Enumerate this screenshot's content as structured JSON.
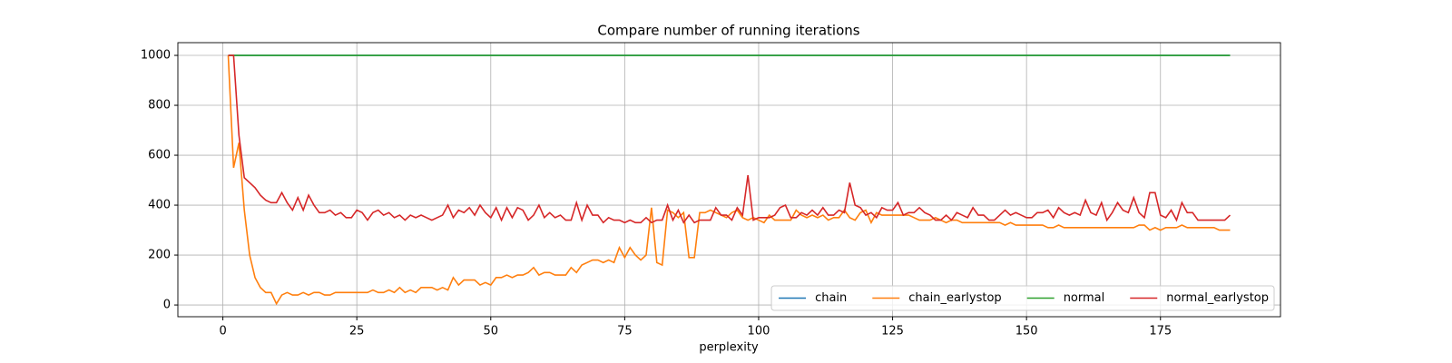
{
  "chart_data": {
    "type": "line",
    "title": "Compare number of running iterations",
    "x_label": "perplexity",
    "xlim": [
      -8.4,
      197.4
    ],
    "ylim": [
      -47,
      1051
    ],
    "xticks": [
      0,
      25,
      50,
      75,
      100,
      125,
      150,
      175
    ],
    "yticks": [
      0,
      200,
      400,
      600,
      800,
      1000
    ],
    "grid": true,
    "legend_loc": "lower right",
    "x": [
      1,
      2,
      3,
      4,
      5,
      6,
      7,
      8,
      9,
      10,
      11,
      12,
      13,
      14,
      15,
      16,
      17,
      18,
      19,
      20,
      21,
      22,
      23,
      24,
      25,
      26,
      27,
      28,
      29,
      30,
      31,
      32,
      33,
      34,
      35,
      36,
      37,
      38,
      39,
      40,
      41,
      42,
      43,
      44,
      45,
      46,
      47,
      48,
      49,
      50,
      51,
      52,
      53,
      54,
      55,
      56,
      57,
      58,
      59,
      60,
      61,
      62,
      63,
      64,
      65,
      66,
      67,
      68,
      69,
      70,
      71,
      72,
      73,
      74,
      75,
      76,
      77,
      78,
      79,
      80,
      81,
      82,
      83,
      84,
      85,
      86,
      87,
      88,
      89,
      90,
      91,
      92,
      93,
      94,
      95,
      96,
      97,
      98,
      99,
      100,
      101,
      102,
      103,
      104,
      105,
      106,
      107,
      108,
      109,
      110,
      111,
      112,
      113,
      114,
      115,
      116,
      117,
      118,
      119,
      120,
      121,
      122,
      123,
      124,
      125,
      126,
      127,
      128,
      129,
      130,
      131,
      132,
      133,
      134,
      135,
      136,
      137,
      138,
      139,
      140,
      141,
      142,
      143,
      144,
      145,
      146,
      147,
      148,
      149,
      150,
      151,
      152,
      153,
      154,
      155,
      156,
      157,
      158,
      159,
      160,
      161,
      162,
      163,
      164,
      165,
      166,
      167,
      168,
      169,
      170,
      171,
      172,
      173,
      174,
      175,
      176,
      177,
      178,
      179,
      180,
      181,
      182,
      183,
      184,
      185,
      186,
      187,
      188
    ],
    "series": [
      {
        "name": "chain",
        "color": "#1f77b4",
        "values": [
          1000,
          1000,
          1000,
          1000,
          1000,
          1000,
          1000,
          1000,
          1000,
          1000,
          1000,
          1000,
          1000,
          1000,
          1000,
          1000,
          1000,
          1000,
          1000,
          1000,
          1000,
          1000,
          1000,
          1000,
          1000,
          1000,
          1000,
          1000,
          1000,
          1000,
          1000,
          1000,
          1000,
          1000,
          1000,
          1000,
          1000,
          1000,
          1000,
          1000,
          1000,
          1000,
          1000,
          1000,
          1000,
          1000,
          1000,
          1000,
          1000,
          1000,
          1000,
          1000,
          1000,
          1000,
          1000,
          1000,
          1000,
          1000,
          1000,
          1000,
          1000,
          1000,
          1000,
          1000,
          1000,
          1000,
          1000,
          1000,
          1000,
          1000,
          1000,
          1000,
          1000,
          1000,
          1000,
          1000,
          1000,
          1000,
          1000,
          1000,
          1000,
          1000,
          1000,
          1000,
          1000,
          1000,
          1000,
          1000,
          1000,
          1000,
          1000,
          1000,
          1000,
          1000,
          1000,
          1000,
          1000,
          1000,
          1000,
          1000,
          1000,
          1000,
          1000,
          1000,
          1000,
          1000,
          1000,
          1000,
          1000,
          1000,
          1000,
          1000,
          1000,
          1000,
          1000,
          1000,
          1000,
          1000,
          1000,
          1000,
          1000,
          1000,
          1000,
          1000,
          1000,
          1000,
          1000,
          1000,
          1000,
          1000,
          1000,
          1000,
          1000,
          1000,
          1000,
          1000,
          1000,
          1000,
          1000,
          1000,
          1000,
          1000,
          1000,
          1000,
          1000,
          1000,
          1000,
          1000,
          1000,
          1000,
          1000,
          1000,
          1000,
          1000,
          1000,
          1000,
          1000,
          1000,
          1000,
          1000,
          1000,
          1000,
          1000,
          1000,
          1000,
          1000,
          1000,
          1000,
          1000,
          1000,
          1000,
          1000,
          1000,
          1000,
          1000,
          1000,
          1000,
          1000,
          1000,
          1000,
          1000,
          1000,
          1000,
          1000,
          1000,
          1000,
          1000,
          1000
        ]
      },
      {
        "name": "chain_earlystop",
        "color": "#ff7f0e",
        "values": [
          1000,
          550,
          650,
          380,
          200,
          110,
          70,
          50,
          50,
          5,
          40,
          50,
          40,
          40,
          50,
          40,
          50,
          50,
          40,
          40,
          50,
          50,
          50,
          50,
          50,
          50,
          50,
          60,
          50,
          50,
          60,
          50,
          70,
          50,
          60,
          50,
          70,
          70,
          70,
          60,
          70,
          60,
          110,
          80,
          100,
          100,
          100,
          80,
          90,
          80,
          110,
          110,
          120,
          110,
          120,
          120,
          130,
          150,
          120,
          130,
          130,
          120,
          120,
          120,
          150,
          130,
          160,
          170,
          180,
          180,
          170,
          180,
          170,
          230,
          190,
          230,
          200,
          180,
          200,
          390,
          170,
          160,
          380,
          370,
          350,
          370,
          190,
          190,
          370,
          370,
          380,
          370,
          360,
          350,
          370,
          380,
          350,
          340,
          350,
          340,
          330,
          360,
          340,
          340,
          340,
          340,
          380,
          360,
          350,
          360,
          350,
          360,
          340,
          350,
          350,
          380,
          350,
          340,
          370,
          380,
          330,
          370,
          360,
          360,
          360,
          360,
          360,
          360,
          350,
          340,
          340,
          340,
          350,
          340,
          330,
          340,
          340,
          330,
          330,
          330,
          330,
          330,
          330,
          330,
          330,
          320,
          330,
          320,
          320,
          320,
          320,
          320,
          320,
          310,
          310,
          320,
          310,
          310,
          310,
          310,
          310,
          310,
          310,
          310,
          310,
          310,
          310,
          310,
          310,
          310,
          320,
          320,
          300,
          310,
          300,
          310,
          310,
          310,
          320,
          310,
          310,
          310,
          310,
          310,
          310,
          300,
          300,
          300
        ]
      },
      {
        "name": "normal",
        "color": "#2ca02c",
        "values": [
          1000,
          1000,
          1000,
          1000,
          1000,
          1000,
          1000,
          1000,
          1000,
          1000,
          1000,
          1000,
          1000,
          1000,
          1000,
          1000,
          1000,
          1000,
          1000,
          1000,
          1000,
          1000,
          1000,
          1000,
          1000,
          1000,
          1000,
          1000,
          1000,
          1000,
          1000,
          1000,
          1000,
          1000,
          1000,
          1000,
          1000,
          1000,
          1000,
          1000,
          1000,
          1000,
          1000,
          1000,
          1000,
          1000,
          1000,
          1000,
          1000,
          1000,
          1000,
          1000,
          1000,
          1000,
          1000,
          1000,
          1000,
          1000,
          1000,
          1000,
          1000,
          1000,
          1000,
          1000,
          1000,
          1000,
          1000,
          1000,
          1000,
          1000,
          1000,
          1000,
          1000,
          1000,
          1000,
          1000,
          1000,
          1000,
          1000,
          1000,
          1000,
          1000,
          1000,
          1000,
          1000,
          1000,
          1000,
          1000,
          1000,
          1000,
          1000,
          1000,
          1000,
          1000,
          1000,
          1000,
          1000,
          1000,
          1000,
          1000,
          1000,
          1000,
          1000,
          1000,
          1000,
          1000,
          1000,
          1000,
          1000,
          1000,
          1000,
          1000,
          1000,
          1000,
          1000,
          1000,
          1000,
          1000,
          1000,
          1000,
          1000,
          1000,
          1000,
          1000,
          1000,
          1000,
          1000,
          1000,
          1000,
          1000,
          1000,
          1000,
          1000,
          1000,
          1000,
          1000,
          1000,
          1000,
          1000,
          1000,
          1000,
          1000,
          1000,
          1000,
          1000,
          1000,
          1000,
          1000,
          1000,
          1000,
          1000,
          1000,
          1000,
          1000,
          1000,
          1000,
          1000,
          1000,
          1000,
          1000,
          1000,
          1000,
          1000,
          1000,
          1000,
          1000,
          1000,
          1000,
          1000,
          1000,
          1000,
          1000,
          1000,
          1000,
          1000,
          1000,
          1000,
          1000,
          1000,
          1000,
          1000,
          1000,
          1000,
          1000,
          1000,
          1000,
          1000,
          1000
        ]
      },
      {
        "name": "normal_earlystop",
        "color": "#d62728",
        "values": [
          1000,
          1000,
          680,
          510,
          490,
          470,
          440,
          420,
          410,
          410,
          450,
          410,
          380,
          430,
          380,
          440,
          400,
          370,
          370,
          380,
          360,
          370,
          350,
          350,
          380,
          370,
          340,
          370,
          380,
          360,
          370,
          350,
          360,
          340,
          360,
          350,
          360,
          350,
          340,
          350,
          360,
          400,
          350,
          380,
          370,
          390,
          360,
          400,
          370,
          350,
          390,
          340,
          390,
          350,
          390,
          380,
          340,
          360,
          400,
          350,
          370,
          350,
          360,
          340,
          340,
          410,
          340,
          400,
          360,
          360,
          330,
          350,
          340,
          340,
          330,
          340,
          330,
          330,
          350,
          330,
          340,
          340,
          400,
          340,
          380,
          330,
          360,
          330,
          340,
          340,
          340,
          390,
          360,
          360,
          340,
          390,
          360,
          520,
          340,
          350,
          350,
          350,
          360,
          390,
          400,
          350,
          350,
          370,
          360,
          380,
          360,
          390,
          360,
          360,
          380,
          370,
          490,
          400,
          390,
          360,
          370,
          350,
          390,
          380,
          380,
          410,
          360,
          370,
          370,
          390,
          370,
          360,
          340,
          340,
          360,
          340,
          370,
          360,
          350,
          390,
          360,
          360,
          340,
          340,
          360,
          380,
          360,
          370,
          360,
          350,
          350,
          370,
          370,
          380,
          350,
          390,
          370,
          360,
          370,
          360,
          420,
          370,
          360,
          410,
          340,
          370,
          410,
          380,
          370,
          430,
          370,
          350,
          450,
          450,
          360,
          350,
          380,
          340,
          410,
          370,
          370,
          340,
          340,
          340,
          340,
          340,
          340,
          360
        ]
      }
    ]
  }
}
